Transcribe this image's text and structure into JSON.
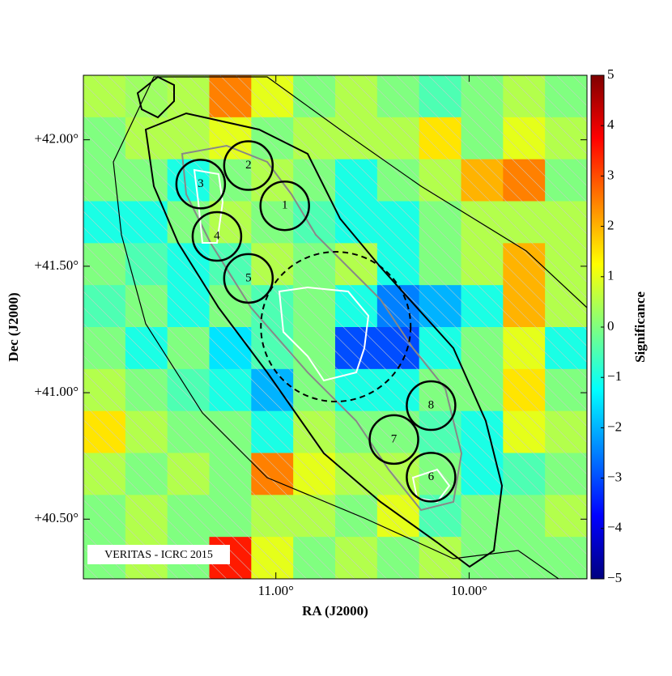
{
  "chart_data": {
    "type": "heatmap",
    "xlabel": "RA (J2000)",
    "ylabel": "Dec (J2000)",
    "colorbar_label": "Significance",
    "annotation": "VERITAS - ICRC 2015",
    "xlim": [
      11.996,
      9.39
    ],
    "ylim": [
      40.264,
      42.255
    ],
    "xticks": [
      {
        "value": 11,
        "label": "11.00°"
      },
      {
        "value": 10,
        "label": "10.00°"
      }
    ],
    "yticks": [
      {
        "value": 40.5,
        "label": "+40.50°"
      },
      {
        "value": 41,
        "label": "+41.00°"
      },
      {
        "value": 41.5,
        "label": "+41.50°"
      },
      {
        "value": 42,
        "label": "+42.00°"
      }
    ],
    "clim": [
      -5,
      5
    ],
    "cticks": [
      {
        "value": -5,
        "label": "−5"
      },
      {
        "value": -4,
        "label": "−4"
      },
      {
        "value": -3,
        "label": "−3"
      },
      {
        "value": -2,
        "label": "−2"
      },
      {
        "value": -1,
        "label": "−1"
      },
      0,
      1,
      2,
      3,
      4,
      5
    ],
    "colormap": "jet",
    "z": [
      [
        0.5,
        0.3,
        0.5,
        2.5,
        1,
        0,
        0.5,
        0,
        -0.5,
        0,
        0.5,
        0
      ],
      [
        0,
        0.5,
        0.5,
        1,
        0,
        0.5,
        0.5,
        0.5,
        1.5,
        0,
        1,
        0.5
      ],
      [
        0,
        0,
        -1,
        0,
        0.5,
        0,
        -1,
        0,
        0.5,
        2,
        2.5,
        0
      ],
      [
        -1,
        -1,
        0,
        0.5,
        0,
        -0.5,
        -1,
        -1,
        0,
        0.5,
        0.5,
        0.5
      ],
      [
        0,
        -0.5,
        -1,
        -0.5,
        0.5,
        0,
        0.5,
        -1,
        0,
        0.5,
        2,
        0.5
      ],
      [
        -0.5,
        0,
        -1,
        0,
        -0.5,
        0,
        -1,
        -2.5,
        -2,
        -1,
        2,
        0.5
      ],
      [
        0,
        -1,
        0,
        -1.5,
        -0.5,
        0,
        -3,
        -3,
        -1,
        0,
        1,
        -1
      ],
      [
        0.5,
        0,
        -0.5,
        -1,
        -2,
        0,
        -1,
        -1,
        0,
        0,
        1.5,
        0
      ],
      [
        1.5,
        0.5,
        0,
        0,
        -1,
        0.5,
        0,
        0,
        -0.5,
        -1,
        1,
        0.5
      ],
      [
        0.5,
        0,
        0.5,
        0,
        2.5,
        1,
        0.5,
        0.5,
        0,
        -1,
        -0.5,
        0
      ],
      [
        0,
        0.5,
        0,
        0,
        0.5,
        0.5,
        0,
        1,
        -0.5,
        0,
        0,
        0.5
      ],
      [
        0,
        0.5,
        0,
        3.5,
        1,
        0,
        0.5,
        0,
        0.5,
        0,
        0,
        0
      ]
    ],
    "regions": [
      {
        "label": "1",
        "ra": 10.954,
        "dec": 41.739,
        "radius": 0.096
      },
      {
        "label": "2",
        "ra": 11.142,
        "dec": 41.898,
        "radius": 0.096
      },
      {
        "label": "3",
        "ra": 11.389,
        "dec": 41.825,
        "radius": 0.096
      },
      {
        "label": "4",
        "ra": 11.305,
        "dec": 41.618,
        "radius": 0.096
      },
      {
        "label": "5",
        "ra": 11.142,
        "dec": 41.452,
        "radius": 0.096
      },
      {
        "label": "6",
        "ra": 10.197,
        "dec": 40.666,
        "radius": 0.096
      },
      {
        "label": "7",
        "ra": 10.389,
        "dec": 40.815,
        "radius": 0.096
      },
      {
        "label": "8",
        "ra": 10.197,
        "dec": 40.949,
        "radius": 0.096
      }
    ],
    "central_region": {
      "ra": 10.69,
      "dec": 41.261,
      "radius": 0.296
    }
  }
}
